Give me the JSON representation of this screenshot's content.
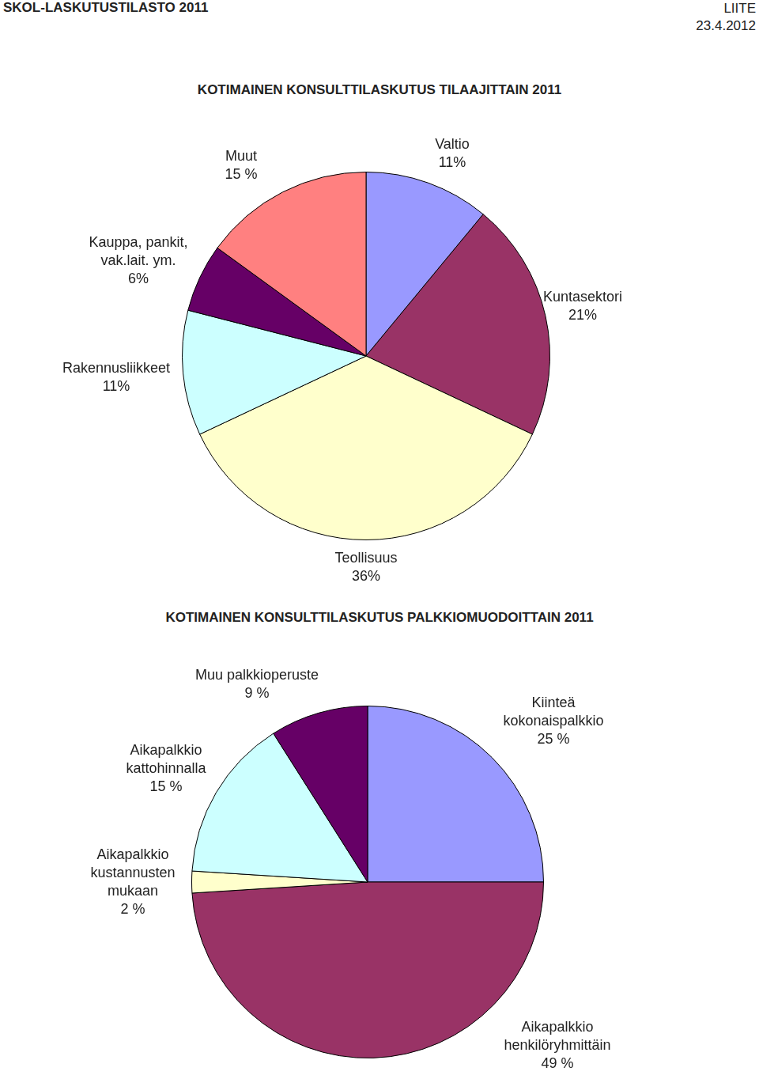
{
  "header": {
    "title": "SKOL-LASKUTUSTILASTO 2011",
    "right": [
      "LIITE",
      "23.4.2012"
    ]
  },
  "chart_data": [
    {
      "type": "pie",
      "title": "KOTIMAINEN KONSULTTILASKUTUS TILAAJITTAIN 2011",
      "categories": [
        "Valtio",
        "Kuntasektori",
        "Teollisuus",
        "Rakennusliikkeet",
        "Kauppa, pankit, vak.lait. ym.",
        "Muut"
      ],
      "values": [
        11,
        21,
        36,
        11,
        6,
        15
      ],
      "value_labels": [
        "11%",
        "21%",
        "36%",
        "11%",
        "6%",
        "15 %"
      ],
      "colors": [
        "#9999ff",
        "#993366",
        "#ffffcc",
        "#ccffff",
        "#660066",
        "#ff8080"
      ],
      "data_labels": true
    },
    {
      "type": "pie",
      "title": "KOTIMAINEN KONSULTTILASKUTUS PALKKIOMUODOITTAIN 2011",
      "categories": [
        "Kiinteä kokonaispalkkio",
        "Aikapalkkio henkilöryhmittäin",
        "Aikapalkkio kustannusten mukaan",
        "Aikapalkkio kattohinnalla",
        "Muu palkkioperuste"
      ],
      "values": [
        25,
        49,
        2,
        15,
        9
      ],
      "value_labels": [
        "25 %",
        "49 %",
        "2 %",
        "15 %",
        "9 %"
      ],
      "colors": [
        "#9999ff",
        "#993366",
        "#ffffcc",
        "#ccffff",
        "#660066"
      ],
      "data_labels": true
    }
  ]
}
